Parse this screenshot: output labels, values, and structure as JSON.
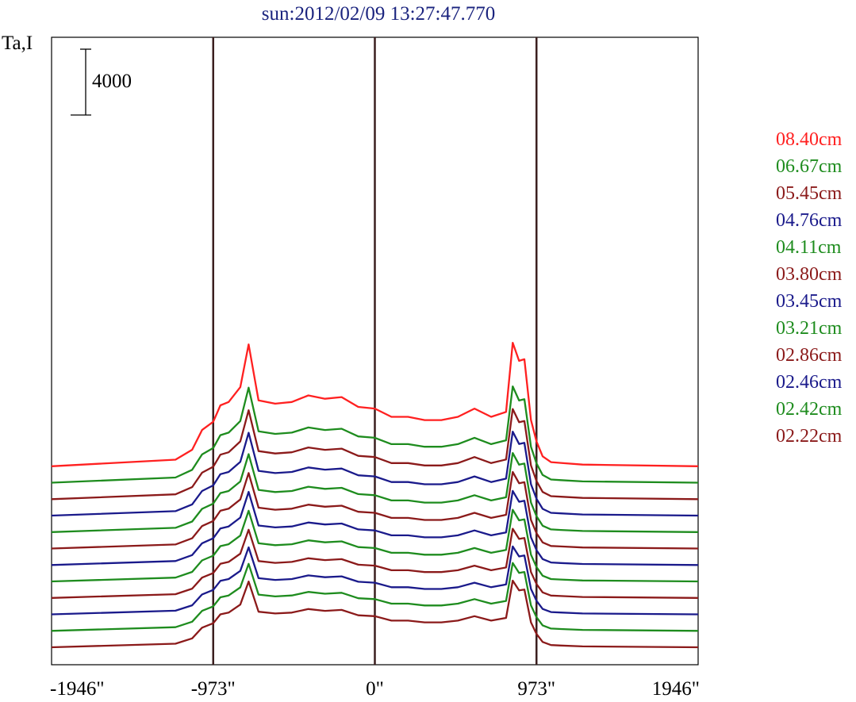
{
  "chart_data": {
    "type": "line",
    "title": "sun:2012/02/09 13:27:47.770",
    "ylabel": "Ta,I",
    "scale_bar_label": "4000",
    "x_ticks": [
      "-1946\"",
      "-973\"",
      "0\"",
      "973\"",
      "1946\""
    ],
    "x_tick_values": [
      -1946,
      -973,
      0,
      973,
      1946
    ],
    "xlim": [
      -1946,
      1946
    ],
    "grid": false,
    "legend_position": "right",
    "vertical_markers": [
      -973,
      0,
      973
    ],
    "scale_bar": 4000,
    "offset_step": 1000,
    "profile_x": [
      -1946,
      -1200,
      -1100,
      -1040,
      -973,
      -930,
      -880,
      -810,
      -760,
      -700,
      -600,
      -500,
      -400,
      -300,
      -200,
      -100,
      0,
      100,
      200,
      300,
      400,
      500,
      600,
      700,
      790,
      830,
      868,
      900,
      940,
      973,
      1010,
      1060,
      1120,
      1250,
      1946
    ],
    "series": [
      {
        "name": "08.40cm",
        "color": "#ff2020",
        "baseline": 11000,
        "scale": 1.0,
        "values": [
          0,
          400,
          1000,
          2200,
          2700,
          3700,
          3900,
          4800,
          7400,
          4000,
          3800,
          3900,
          4300,
          4100,
          4200,
          3600,
          3500,
          3000,
          3000,
          2800,
          2800,
          3000,
          3500,
          3000,
          3300,
          7500,
          6400,
          6500,
          2800,
          1500,
          600,
          250,
          200,
          100,
          0
        ]
      },
      {
        "name": "06.67cm",
        "color": "#1e8c1e",
        "baseline": 10000,
        "scale": 0.78,
        "values": [
          0,
          400,
          1000,
          2200,
          2700,
          3700,
          3900,
          4800,
          7400,
          4000,
          3800,
          3900,
          4300,
          4100,
          4200,
          3600,
          3500,
          3000,
          3000,
          2800,
          2800,
          3000,
          3500,
          3000,
          3300,
          7500,
          6400,
          6500,
          2800,
          1500,
          600,
          250,
          200,
          100,
          0
        ]
      },
      {
        "name": "05.45cm",
        "color": "#8b1a1a",
        "baseline": 9000,
        "scale": 0.73,
        "values": [
          0,
          400,
          1000,
          2200,
          2700,
          3700,
          3900,
          4800,
          7400,
          4000,
          3800,
          3900,
          4300,
          4100,
          4200,
          3600,
          3500,
          3000,
          3000,
          2800,
          2800,
          3000,
          3500,
          3000,
          3300,
          7500,
          6400,
          6500,
          2800,
          1500,
          600,
          250,
          200,
          100,
          0
        ]
      },
      {
        "name": "04.76cm",
        "color": "#1a1a8b",
        "baseline": 8000,
        "scale": 0.68,
        "values": [
          0,
          400,
          1000,
          2200,
          2700,
          3700,
          3900,
          4800,
          7400,
          4000,
          3800,
          3900,
          4300,
          4100,
          4200,
          3600,
          3500,
          3000,
          3000,
          2800,
          2800,
          3000,
          3500,
          3000,
          3300,
          7500,
          6400,
          6500,
          2800,
          1500,
          600,
          250,
          200,
          100,
          0
        ]
      },
      {
        "name": "04.11cm",
        "color": "#1e8c1e",
        "baseline": 7000,
        "scale": 0.64,
        "values": [
          0,
          400,
          1000,
          2200,
          2700,
          3700,
          3900,
          4800,
          7400,
          4000,
          3800,
          3900,
          4300,
          4100,
          4200,
          3600,
          3500,
          3000,
          3000,
          2800,
          2800,
          3000,
          3500,
          3000,
          3300,
          7500,
          6400,
          6500,
          2800,
          1500,
          600,
          250,
          200,
          100,
          0
        ]
      },
      {
        "name": "03.80cm",
        "color": "#8b1a1a",
        "baseline": 6000,
        "scale": 0.62,
        "values": [
          0,
          400,
          1000,
          2200,
          2700,
          3700,
          3900,
          4800,
          7400,
          4000,
          3800,
          3900,
          4300,
          4100,
          4200,
          3600,
          3500,
          3000,
          3000,
          2800,
          2800,
          3000,
          3500,
          3000,
          3300,
          7500,
          6400,
          6500,
          2800,
          1500,
          600,
          250,
          200,
          100,
          0
        ]
      },
      {
        "name": "03.45cm",
        "color": "#1a1a8b",
        "baseline": 5000,
        "scale": 0.6,
        "values": [
          0,
          400,
          1000,
          2200,
          2700,
          3700,
          3900,
          4800,
          7400,
          4000,
          3800,
          3900,
          4300,
          4100,
          4200,
          3600,
          3500,
          3000,
          3000,
          2800,
          2800,
          3000,
          3500,
          3000,
          3300,
          7500,
          6400,
          6500,
          2800,
          1500,
          600,
          250,
          200,
          100,
          0
        ]
      },
      {
        "name": "03.21cm",
        "color": "#1e8c1e",
        "baseline": 4000,
        "scale": 0.58,
        "values": [
          0,
          400,
          1000,
          2200,
          2700,
          3700,
          3900,
          4800,
          7400,
          4000,
          3800,
          3900,
          4300,
          4100,
          4200,
          3600,
          3500,
          3000,
          3000,
          2800,
          2800,
          3000,
          3500,
          3000,
          3300,
          7500,
          6400,
          6500,
          2800,
          1500,
          600,
          250,
          200,
          100,
          0
        ]
      },
      {
        "name": "02.86cm",
        "color": "#8b1a1a",
        "baseline": 3000,
        "scale": 0.56,
        "values": [
          0,
          400,
          1000,
          2200,
          2700,
          3700,
          3900,
          4800,
          7400,
          4000,
          3800,
          3900,
          4300,
          4100,
          4200,
          3600,
          3500,
          3000,
          3000,
          2800,
          2800,
          3000,
          3500,
          3000,
          3300,
          7500,
          6400,
          6500,
          2800,
          1500,
          600,
          250,
          200,
          100,
          0
        ]
      },
      {
        "name": "02.46cm",
        "color": "#1a1a8b",
        "baseline": 2000,
        "scale": 0.55,
        "values": [
          0,
          400,
          1000,
          2200,
          2700,
          3700,
          3900,
          4800,
          7400,
          4000,
          3800,
          3900,
          4300,
          4100,
          4200,
          3600,
          3500,
          3000,
          3000,
          2800,
          2800,
          3000,
          3500,
          3000,
          3300,
          7500,
          6400,
          6500,
          2800,
          1500,
          600,
          250,
          200,
          100,
          0
        ]
      },
      {
        "name": "02.42cm",
        "color": "#1e8c1e",
        "baseline": 1000,
        "scale": 0.55,
        "values": [
          0,
          400,
          1000,
          2200,
          2700,
          3700,
          3900,
          4800,
          7400,
          4000,
          3800,
          3900,
          4300,
          4100,
          4200,
          3600,
          3500,
          3000,
          3000,
          2800,
          2800,
          3000,
          3500,
          3000,
          3300,
          7500,
          6400,
          6500,
          2800,
          1500,
          600,
          250,
          200,
          100,
          0
        ]
      },
      {
        "name": "02.22cm",
        "color": "#8b1a1a",
        "baseline": 0,
        "scale": 0.54,
        "values": [
          0,
          400,
          1000,
          2200,
          2700,
          3700,
          3900,
          4800,
          7400,
          4000,
          3800,
          3900,
          4300,
          4100,
          4200,
          3600,
          3500,
          3000,
          3000,
          2800,
          2800,
          3000,
          3500,
          3000,
          3300,
          7500,
          6400,
          6500,
          2800,
          1500,
          600,
          250,
          200,
          100,
          0
        ]
      }
    ]
  }
}
